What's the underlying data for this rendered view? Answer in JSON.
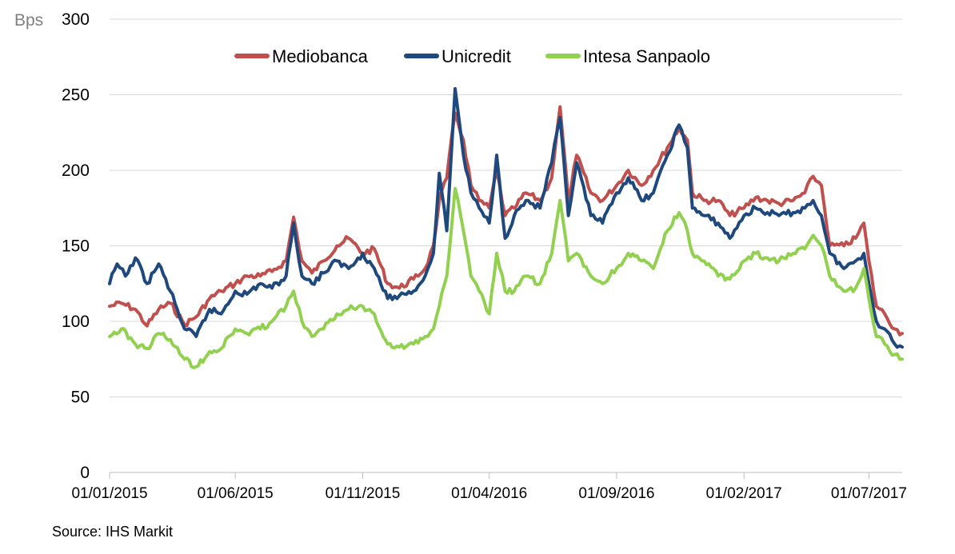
{
  "chart_data": {
    "type": "line",
    "title": "",
    "ylabel": "Bps",
    "xlabel": "",
    "ylim": [
      0,
      300
    ],
    "y_ticks": [
      0,
      50,
      100,
      150,
      200,
      250,
      300
    ],
    "x_ticks": [
      "01/01/2015",
      "01/06/2015",
      "01/11/2015",
      "01/04/2016",
      "01/09/2016",
      "01/02/2017",
      "01/07/2017"
    ],
    "x_range": [
      "01/01/2015",
      "10/08/2017"
    ],
    "grid": true,
    "legend_position": "top-center",
    "source": "Source: IHS Markit",
    "series": [
      {
        "name": "Mediobanca",
        "color": "#c0504d",
        "points": [
          [
            "01/01/2015",
            110
          ],
          [
            "15/01/2015",
            112
          ],
          [
            "01/02/2015",
            108
          ],
          [
            "15/02/2015",
            97
          ],
          [
            "01/03/2015",
            108
          ],
          [
            "15/03/2015",
            112
          ],
          [
            "01/04/2015",
            98
          ],
          [
            "15/04/2015",
            103
          ],
          [
            "01/05/2015",
            115
          ],
          [
            "15/05/2015",
            120
          ],
          [
            "01/06/2015",
            125
          ],
          [
            "15/06/2015",
            130
          ],
          [
            "01/07/2015",
            130
          ],
          [
            "15/07/2015",
            133
          ],
          [
            "01/08/2015",
            140
          ],
          [
            "10/08/2015",
            169
          ],
          [
            "20/08/2015",
            140
          ],
          [
            "01/09/2015",
            132
          ],
          [
            "15/09/2015",
            140
          ],
          [
            "01/10/2015",
            150
          ],
          [
            "15/10/2015",
            155
          ],
          [
            "01/11/2015",
            145
          ],
          [
            "15/11/2015",
            148
          ],
          [
            "01/12/2015",
            125
          ],
          [
            "15/12/2015",
            122
          ],
          [
            "01/01/2016",
            128
          ],
          [
            "15/01/2016",
            135
          ],
          [
            "25/01/2016",
            150
          ],
          [
            "01/02/2016",
            180
          ],
          [
            "10/02/2016",
            195
          ],
          [
            "20/02/2016",
            238
          ],
          [
            "01/03/2016",
            220
          ],
          [
            "10/03/2016",
            190
          ],
          [
            "20/03/2016",
            180
          ],
          [
            "01/04/2016",
            175
          ],
          [
            "10/04/2016",
            200
          ],
          [
            "20/04/2016",
            170
          ],
          [
            "01/05/2016",
            175
          ],
          [
            "15/05/2016",
            185
          ],
          [
            "01/06/2016",
            180
          ],
          [
            "15/06/2016",
            195
          ],
          [
            "25/06/2016",
            242
          ],
          [
            "05/07/2016",
            180
          ],
          [
            "15/07/2016",
            210
          ],
          [
            "01/08/2016",
            185
          ],
          [
            "15/08/2016",
            180
          ],
          [
            "01/09/2016",
            190
          ],
          [
            "15/09/2016",
            200
          ],
          [
            "01/10/2016",
            190
          ],
          [
            "15/10/2016",
            200
          ],
          [
            "01/11/2016",
            215
          ],
          [
            "15/11/2016",
            228
          ],
          [
            "25/11/2016",
            220
          ],
          [
            "01/12/2016",
            185
          ],
          [
            "15/12/2016",
            180
          ],
          [
            "01/01/2017",
            180
          ],
          [
            "15/01/2017",
            170
          ],
          [
            "01/02/2017",
            175
          ],
          [
            "15/02/2017",
            182
          ],
          [
            "01/03/2017",
            180
          ],
          [
            "15/03/2017",
            178
          ],
          [
            "01/04/2017",
            180
          ],
          [
            "15/04/2017",
            185
          ],
          [
            "25/04/2017",
            196
          ],
          [
            "05/05/2017",
            190
          ],
          [
            "15/05/2017",
            150
          ],
          [
            "01/06/2017",
            150
          ],
          [
            "15/06/2017",
            155
          ],
          [
            "25/06/2017",
            165
          ],
          [
            "01/07/2017",
            140
          ],
          [
            "10/07/2017",
            110
          ],
          [
            "20/07/2017",
            105
          ],
          [
            "01/08/2017",
            95
          ],
          [
            "10/08/2017",
            92
          ]
        ]
      },
      {
        "name": "Unicredit",
        "color": "#1f497d",
        "points": [
          [
            "01/01/2015",
            125
          ],
          [
            "10/01/2015",
            138
          ],
          [
            "20/01/2015",
            130
          ],
          [
            "01/02/2015",
            142
          ],
          [
            "15/02/2015",
            125
          ],
          [
            "01/03/2015",
            138
          ],
          [
            "15/03/2015",
            120
          ],
          [
            "01/04/2015",
            95
          ],
          [
            "15/04/2015",
            90
          ],
          [
            "01/05/2015",
            108
          ],
          [
            "15/05/2015",
            105
          ],
          [
            "01/06/2015",
            120
          ],
          [
            "15/06/2015",
            118
          ],
          [
            "01/07/2015",
            125
          ],
          [
            "15/07/2015",
            122
          ],
          [
            "01/08/2015",
            130
          ],
          [
            "10/08/2015",
            165
          ],
          [
            "20/08/2015",
            130
          ],
          [
            "01/09/2015",
            125
          ],
          [
            "15/09/2015",
            132
          ],
          [
            "01/10/2015",
            140
          ],
          [
            "15/10/2015",
            135
          ],
          [
            "01/11/2015",
            145
          ],
          [
            "15/11/2015",
            135
          ],
          [
            "01/12/2015",
            115
          ],
          [
            "15/12/2015",
            117
          ],
          [
            "01/01/2016",
            120
          ],
          [
            "15/01/2016",
            130
          ],
          [
            "25/01/2016",
            145
          ],
          [
            "01/02/2016",
            198
          ],
          [
            "10/02/2016",
            160
          ],
          [
            "20/02/2016",
            254
          ],
          [
            "01/03/2016",
            210
          ],
          [
            "10/03/2016",
            185
          ],
          [
            "20/03/2016",
            175
          ],
          [
            "01/04/2016",
            165
          ],
          [
            "10/04/2016",
            210
          ],
          [
            "20/04/2016",
            155
          ],
          [
            "01/05/2016",
            170
          ],
          [
            "15/05/2016",
            180
          ],
          [
            "01/06/2016",
            175
          ],
          [
            "15/06/2016",
            205
          ],
          [
            "25/06/2016",
            235
          ],
          [
            "05/07/2016",
            170
          ],
          [
            "15/07/2016",
            205
          ],
          [
            "01/08/2016",
            170
          ],
          [
            "15/08/2016",
            165
          ],
          [
            "01/09/2016",
            185
          ],
          [
            "15/09/2016",
            195
          ],
          [
            "01/10/2016",
            180
          ],
          [
            "15/10/2016",
            185
          ],
          [
            "01/11/2016",
            210
          ],
          [
            "15/11/2016",
            230
          ],
          [
            "25/11/2016",
            215
          ],
          [
            "01/12/2016",
            175
          ],
          [
            "15/12/2016",
            170
          ],
          [
            "01/01/2017",
            165
          ],
          [
            "15/01/2017",
            155
          ],
          [
            "01/02/2017",
            170
          ],
          [
            "15/02/2017",
            175
          ],
          [
            "01/03/2017",
            172
          ],
          [
            "15/03/2017",
            170
          ],
          [
            "01/04/2017",
            172
          ],
          [
            "15/04/2017",
            175
          ],
          [
            "25/04/2017",
            180
          ],
          [
            "05/05/2017",
            170
          ],
          [
            "15/05/2017",
            145
          ],
          [
            "01/06/2017",
            135
          ],
          [
            "15/06/2017",
            140
          ],
          [
            "25/06/2017",
            145
          ],
          [
            "01/07/2017",
            125
          ],
          [
            "10/07/2017",
            100
          ],
          [
            "20/07/2017",
            95
          ],
          [
            "01/08/2017",
            85
          ],
          [
            "10/08/2017",
            83
          ]
        ]
      },
      {
        "name": "Intesa Sanpaolo",
        "color": "#92d050",
        "points": [
          [
            "01/01/2015",
            90
          ],
          [
            "15/01/2015",
            95
          ],
          [
            "01/02/2015",
            85
          ],
          [
            "15/02/2015",
            82
          ],
          [
            "01/03/2015",
            92
          ],
          [
            "15/03/2015",
            88
          ],
          [
            "01/04/2015",
            75
          ],
          [
            "15/04/2015",
            70
          ],
          [
            "01/05/2015",
            80
          ],
          [
            "15/05/2015",
            82
          ],
          [
            "01/06/2015",
            95
          ],
          [
            "15/06/2015",
            92
          ],
          [
            "01/07/2015",
            95
          ],
          [
            "15/07/2015",
            100
          ],
          [
            "01/08/2015",
            110
          ],
          [
            "10/08/2015",
            120
          ],
          [
            "20/08/2015",
            100
          ],
          [
            "01/09/2015",
            90
          ],
          [
            "15/09/2015",
            95
          ],
          [
            "01/10/2015",
            105
          ],
          [
            "15/10/2015",
            108
          ],
          [
            "01/11/2015",
            110
          ],
          [
            "15/11/2015",
            105
          ],
          [
            "01/12/2015",
            85
          ],
          [
            "15/12/2015",
            83
          ],
          [
            "01/01/2016",
            85
          ],
          [
            "15/01/2016",
            90
          ],
          [
            "25/01/2016",
            95
          ],
          [
            "01/02/2016",
            110
          ],
          [
            "10/02/2016",
            130
          ],
          [
            "20/02/2016",
            188
          ],
          [
            "01/03/2016",
            160
          ],
          [
            "10/03/2016",
            130
          ],
          [
            "20/03/2016",
            120
          ],
          [
            "01/04/2016",
            105
          ],
          [
            "10/04/2016",
            145
          ],
          [
            "20/04/2016",
            120
          ],
          [
            "01/05/2016",
            120
          ],
          [
            "15/05/2016",
            130
          ],
          [
            "01/06/2016",
            125
          ],
          [
            "15/06/2016",
            145
          ],
          [
            "25/06/2016",
            180
          ],
          [
            "05/07/2016",
            140
          ],
          [
            "15/07/2016",
            145
          ],
          [
            "01/08/2016",
            130
          ],
          [
            "15/08/2016",
            125
          ],
          [
            "01/09/2016",
            135
          ],
          [
            "15/09/2016",
            145
          ],
          [
            "01/10/2016",
            140
          ],
          [
            "15/10/2016",
            135
          ],
          [
            "01/11/2016",
            160
          ],
          [
            "15/11/2016",
            172
          ],
          [
            "25/11/2016",
            160
          ],
          [
            "01/12/2016",
            145
          ],
          [
            "15/12/2016",
            140
          ],
          [
            "01/01/2017",
            130
          ],
          [
            "15/01/2017",
            128
          ],
          [
            "01/02/2017",
            140
          ],
          [
            "15/02/2017",
            145
          ],
          [
            "01/03/2017",
            142
          ],
          [
            "15/03/2017",
            140
          ],
          [
            "01/04/2017",
            145
          ],
          [
            "15/04/2017",
            148
          ],
          [
            "25/04/2017",
            157
          ],
          [
            "05/05/2017",
            150
          ],
          [
            "15/05/2017",
            130
          ],
          [
            "01/06/2017",
            120
          ],
          [
            "15/06/2017",
            122
          ],
          [
            "25/06/2017",
            135
          ],
          [
            "01/07/2017",
            115
          ],
          [
            "10/07/2017",
            90
          ],
          [
            "20/07/2017",
            85
          ],
          [
            "01/08/2017",
            78
          ],
          [
            "10/08/2017",
            75
          ]
        ]
      }
    ]
  }
}
